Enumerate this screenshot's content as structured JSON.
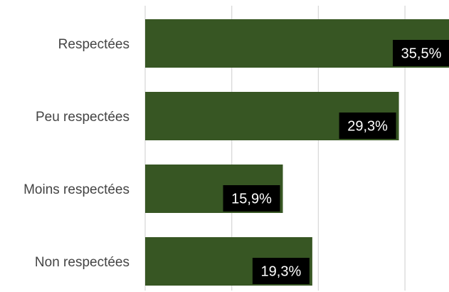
{
  "chart_data": {
    "type": "bar",
    "orientation": "horizontal",
    "categories": [
      "Respectées",
      "Peu respectées",
      "Moins respectées",
      "Non respectées"
    ],
    "values": [
      35.5,
      29.3,
      15.9,
      19.3
    ],
    "data_labels": [
      "35,5%",
      "29,3%",
      "15,9%",
      "19,3%"
    ],
    "xlim": [
      0,
      35
    ],
    "x_gridlines": [
      0,
      10,
      20,
      30
    ],
    "grid": true,
    "legend": "none",
    "colors": {
      "bar": "#375623",
      "label_box": "#000000",
      "label_text": "#ffffff",
      "gridline": "#d9d9d9",
      "category_text": "#444444"
    }
  }
}
